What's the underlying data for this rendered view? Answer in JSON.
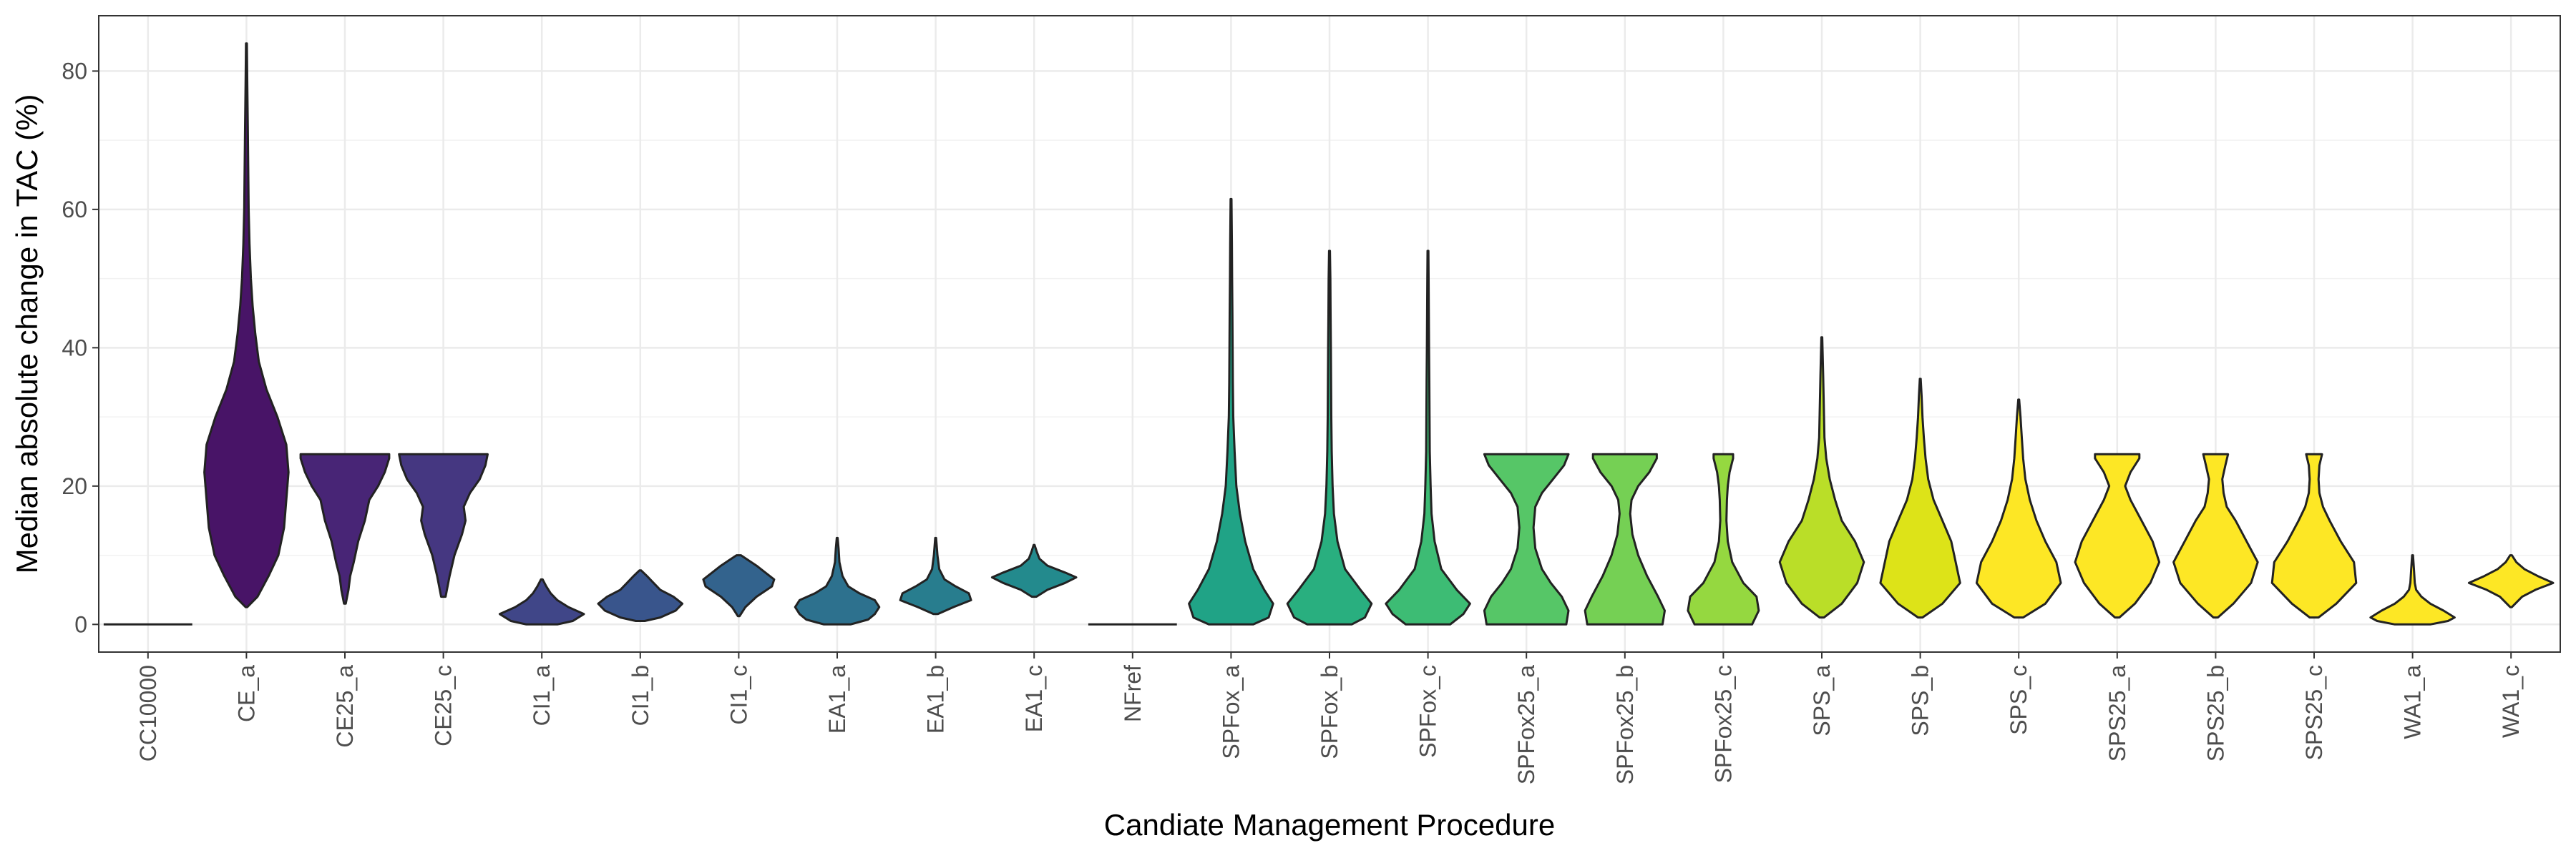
{
  "chart_data": {
    "type": "violin",
    "title": "",
    "xlabel": "Candiate Management Procedure",
    "ylabel": "Median absolute change in TAC (%)",
    "ylim": [
      -4,
      88
    ],
    "yticks": [
      0,
      20,
      40,
      60,
      80
    ],
    "grid": true,
    "legend": "none",
    "categories": [
      "CC10000",
      "CE_a",
      "CE25_a",
      "CE25_c",
      "CI1_a",
      "CI1_b",
      "CI1_c",
      "EA1_a",
      "EA1_b",
      "EA1_c",
      "NFref",
      "SPFox_a",
      "SPFox_b",
      "SPFox_c",
      "SPFox25_a",
      "SPFox25_b",
      "SPFox25_c",
      "SPS_a",
      "SPS_b",
      "SPS_c",
      "SPS25_a",
      "SPS25_b",
      "SPS25_c",
      "WA1_a",
      "WA1_c"
    ],
    "colors": [
      "#440154",
      "#481467",
      "#482576",
      "#453781",
      "#404688",
      "#39558c",
      "#33638d",
      "#2d718e",
      "#287d8e",
      "#238a8d",
      "#1f968b",
      "#20a386",
      "#29af7f",
      "#3dbc74",
      "#56c667",
      "#75d054",
      "#95d840",
      "#bade28",
      "#dde318",
      "#fde725",
      "#fde725",
      "#fde725",
      "#fde725",
      "#fde725",
      "#fde725"
    ],
    "violins": [
      {
        "min": 0,
        "max": 0,
        "shape": [
          [
            0,
            1
          ]
        ]
      },
      {
        "min": 2.5,
        "max": 84,
        "shape": [
          [
            2.5,
            0.02
          ],
          [
            4,
            0.25
          ],
          [
            7,
            0.5
          ],
          [
            10,
            0.72
          ],
          [
            14,
            0.85
          ],
          [
            18,
            0.9
          ],
          [
            22,
            0.95
          ],
          [
            26,
            0.9
          ],
          [
            30,
            0.7
          ],
          [
            34,
            0.45
          ],
          [
            38,
            0.28
          ],
          [
            42,
            0.2
          ],
          [
            46,
            0.14
          ],
          [
            50,
            0.1
          ],
          [
            55,
            0.07
          ],
          [
            60,
            0.05
          ],
          [
            66,
            0.04
          ],
          [
            72,
            0.03
          ],
          [
            78,
            0.02
          ],
          [
            84,
            0.01
          ]
        ]
      },
      {
        "min": 3,
        "max": 24.6,
        "shape": [
          [
            3,
            0.02
          ],
          [
            5,
            0.08
          ],
          [
            7,
            0.12
          ],
          [
            9,
            0.2
          ],
          [
            12,
            0.3
          ],
          [
            15,
            0.45
          ],
          [
            18,
            0.55
          ],
          [
            20,
            0.75
          ],
          [
            22,
            0.9
          ],
          [
            24,
            1.0
          ],
          [
            24.6,
            1.0
          ]
        ]
      },
      {
        "min": 4,
        "max": 24.6,
        "shape": [
          [
            4,
            0.05
          ],
          [
            7,
            0.14
          ],
          [
            10,
            0.25
          ],
          [
            13,
            0.42
          ],
          [
            15,
            0.5
          ],
          [
            17,
            0.46
          ],
          [
            19,
            0.6
          ],
          [
            21,
            0.82
          ],
          [
            23,
            0.95
          ],
          [
            24.6,
            1.0
          ]
        ]
      },
      {
        "min": 0,
        "max": 6.5,
        "shape": [
          [
            0,
            0.35
          ],
          [
            0.5,
            0.7
          ],
          [
            1.5,
            0.95
          ],
          [
            2.5,
            0.6
          ],
          [
            3.5,
            0.35
          ],
          [
            4.5,
            0.2
          ],
          [
            5.5,
            0.1
          ],
          [
            6.5,
            0.02
          ]
        ]
      },
      {
        "min": 0.5,
        "max": 7.8,
        "shape": [
          [
            0.5,
            0.1
          ],
          [
            1,
            0.45
          ],
          [
            2,
            0.8
          ],
          [
            3,
            0.95
          ],
          [
            4,
            0.75
          ],
          [
            5,
            0.45
          ],
          [
            6,
            0.3
          ],
          [
            7,
            0.15
          ],
          [
            7.8,
            0.02
          ]
        ]
      },
      {
        "min": 1.2,
        "max": 10,
        "shape": [
          [
            1.2,
            0.02
          ],
          [
            2.5,
            0.15
          ],
          [
            4,
            0.4
          ],
          [
            5.5,
            0.75
          ],
          [
            6.5,
            0.8
          ],
          [
            7.5,
            0.6
          ],
          [
            8.5,
            0.4
          ],
          [
            10,
            0.05
          ]
        ]
      },
      {
        "min": 0,
        "max": 12.5,
        "shape": [
          [
            0,
            0.3
          ],
          [
            0.7,
            0.7
          ],
          [
            1.5,
            0.85
          ],
          [
            2.5,
            0.95
          ],
          [
            3.5,
            0.85
          ],
          [
            4.5,
            0.5
          ],
          [
            5.5,
            0.25
          ],
          [
            7,
            0.12
          ],
          [
            9,
            0.05
          ],
          [
            11,
            0.03
          ],
          [
            12.5,
            0.01
          ]
        ]
      },
      {
        "min": 1.5,
        "max": 12.5,
        "shape": [
          [
            1.5,
            0.05
          ],
          [
            2.5,
            0.4
          ],
          [
            3.5,
            0.8
          ],
          [
            4.5,
            0.75
          ],
          [
            5.5,
            0.45
          ],
          [
            6.5,
            0.2
          ],
          [
            8,
            0.08
          ],
          [
            10,
            0.04
          ],
          [
            12.5,
            0.01
          ]
        ]
      },
      {
        "min": 4,
        "max": 11.5,
        "shape": [
          [
            4,
            0.05
          ],
          [
            5,
            0.3
          ],
          [
            6,
            0.7
          ],
          [
            6.8,
            0.95
          ],
          [
            7.5,
            0.7
          ],
          [
            8.5,
            0.3
          ],
          [
            9.5,
            0.12
          ],
          [
            10.5,
            0.06
          ],
          [
            11.5,
            0.01
          ]
        ]
      },
      {
        "min": 0,
        "max": 0,
        "shape": [
          [
            0,
            1
          ]
        ]
      },
      {
        "min": 0,
        "max": 61.5,
        "shape": [
          [
            0,
            0.5
          ],
          [
            1,
            0.85
          ],
          [
            3,
            0.95
          ],
          [
            5,
            0.75
          ],
          [
            8,
            0.5
          ],
          [
            12,
            0.32
          ],
          [
            16,
            0.2
          ],
          [
            20,
            0.12
          ],
          [
            25,
            0.08
          ],
          [
            30,
            0.05
          ],
          [
            35,
            0.04
          ],
          [
            40,
            0.035
          ],
          [
            45,
            0.03
          ],
          [
            50,
            0.025
          ],
          [
            55,
            0.02
          ],
          [
            61.5,
            0.01
          ]
        ]
      },
      {
        "min": 0,
        "max": 54,
        "shape": [
          [
            0,
            0.5
          ],
          [
            1,
            0.8
          ],
          [
            3,
            0.95
          ],
          [
            5,
            0.7
          ],
          [
            8,
            0.35
          ],
          [
            12,
            0.18
          ],
          [
            16,
            0.1
          ],
          [
            20,
            0.07
          ],
          [
            25,
            0.05
          ],
          [
            30,
            0.04
          ],
          [
            35,
            0.035
          ],
          [
            40,
            0.03
          ],
          [
            45,
            0.025
          ],
          [
            50,
            0.02
          ],
          [
            54,
            0.01
          ]
        ]
      },
      {
        "min": 0,
        "max": 54,
        "shape": [
          [
            0,
            0.5
          ],
          [
            1.5,
            0.8
          ],
          [
            3,
            0.95
          ],
          [
            5,
            0.65
          ],
          [
            8,
            0.3
          ],
          [
            12,
            0.15
          ],
          [
            16,
            0.08
          ],
          [
            20,
            0.06
          ],
          [
            25,
            0.04
          ],
          [
            30,
            0.035
          ],
          [
            35,
            0.03
          ],
          [
            40,
            0.025
          ],
          [
            45,
            0.02
          ],
          [
            50,
            0.015
          ],
          [
            54,
            0.01
          ]
        ]
      },
      {
        "min": 0,
        "max": 24.6,
        "shape": [
          [
            0,
            0.9
          ],
          [
            2,
            0.95
          ],
          [
            4,
            0.8
          ],
          [
            6,
            0.55
          ],
          [
            8,
            0.35
          ],
          [
            11,
            0.2
          ],
          [
            14,
            0.16
          ],
          [
            17,
            0.2
          ],
          [
            19,
            0.35
          ],
          [
            21,
            0.6
          ],
          [
            23,
            0.85
          ],
          [
            24.6,
            0.95
          ]
        ]
      },
      {
        "min": 0,
        "max": 24.6,
        "shape": [
          [
            0,
            0.85
          ],
          [
            2,
            0.9
          ],
          [
            4,
            0.75
          ],
          [
            7,
            0.5
          ],
          [
            10,
            0.3
          ],
          [
            13,
            0.17
          ],
          [
            16,
            0.12
          ],
          [
            18,
            0.15
          ],
          [
            20,
            0.3
          ],
          [
            22,
            0.55
          ],
          [
            24,
            0.72
          ],
          [
            24.6,
            0.72
          ]
        ]
      },
      {
        "min": 0,
        "max": 24.6,
        "shape": [
          [
            0,
            0.65
          ],
          [
            2,
            0.8
          ],
          [
            4,
            0.75
          ],
          [
            6,
            0.45
          ],
          [
            9,
            0.2
          ],
          [
            12,
            0.1
          ],
          [
            15,
            0.07
          ],
          [
            18,
            0.08
          ],
          [
            20,
            0.1
          ],
          [
            22,
            0.14
          ],
          [
            24,
            0.22
          ],
          [
            24.6,
            0.22
          ]
        ]
      },
      {
        "min": 1,
        "max": 41.5,
        "shape": [
          [
            1,
            0.05
          ],
          [
            3,
            0.45
          ],
          [
            6,
            0.8
          ],
          [
            9,
            0.95
          ],
          [
            12,
            0.75
          ],
          [
            15,
            0.45
          ],
          [
            18,
            0.3
          ],
          [
            21,
            0.18
          ],
          [
            24,
            0.1
          ],
          [
            27,
            0.06
          ],
          [
            30,
            0.05
          ],
          [
            33,
            0.04
          ],
          [
            36,
            0.03
          ],
          [
            39,
            0.02
          ],
          [
            41.5,
            0.01
          ]
        ]
      },
      {
        "min": 1,
        "max": 35.5,
        "shape": [
          [
            1,
            0.05
          ],
          [
            3,
            0.5
          ],
          [
            6,
            0.9
          ],
          [
            9,
            0.8
          ],
          [
            12,
            0.7
          ],
          [
            15,
            0.5
          ],
          [
            18,
            0.3
          ],
          [
            21,
            0.18
          ],
          [
            24,
            0.12
          ],
          [
            27,
            0.08
          ],
          [
            30,
            0.05
          ],
          [
            33,
            0.03
          ],
          [
            35.5,
            0.01
          ]
        ]
      },
      {
        "min": 1,
        "max": 32.5,
        "shape": [
          [
            1,
            0.1
          ],
          [
            3,
            0.6
          ],
          [
            6,
            0.95
          ],
          [
            9,
            0.85
          ],
          [
            12,
            0.6
          ],
          [
            15,
            0.4
          ],
          [
            18,
            0.25
          ],
          [
            21,
            0.15
          ],
          [
            24,
            0.1
          ],
          [
            27,
            0.07
          ],
          [
            30,
            0.04
          ],
          [
            32.5,
            0.01
          ]
        ]
      },
      {
        "min": 1,
        "max": 24.6,
        "shape": [
          [
            1,
            0.05
          ],
          [
            3,
            0.4
          ],
          [
            6,
            0.75
          ],
          [
            9,
            0.95
          ],
          [
            12,
            0.8
          ],
          [
            15,
            0.55
          ],
          [
            18,
            0.3
          ],
          [
            20,
            0.18
          ],
          [
            22,
            0.3
          ],
          [
            24,
            0.5
          ],
          [
            24.6,
            0.5
          ]
        ]
      },
      {
        "min": 1,
        "max": 24.6,
        "shape": [
          [
            1,
            0.05
          ],
          [
            3,
            0.4
          ],
          [
            6,
            0.8
          ],
          [
            9,
            0.95
          ],
          [
            12,
            0.7
          ],
          [
            15,
            0.45
          ],
          [
            17,
            0.25
          ],
          [
            19,
            0.18
          ],
          [
            21,
            0.15
          ],
          [
            23,
            0.22
          ],
          [
            24.6,
            0.28
          ]
        ]
      },
      {
        "min": 1,
        "max": 24.6,
        "shape": [
          [
            1,
            0.1
          ],
          [
            3,
            0.5
          ],
          [
            6,
            0.95
          ],
          [
            9,
            0.9
          ],
          [
            12,
            0.6
          ],
          [
            15,
            0.35
          ],
          [
            17,
            0.2
          ],
          [
            19,
            0.12
          ],
          [
            21,
            0.1
          ],
          [
            23,
            0.12
          ],
          [
            24.6,
            0.18
          ]
        ]
      },
      {
        "min": 0,
        "max": 10,
        "shape": [
          [
            0,
            0.4
          ],
          [
            0.5,
            0.8
          ],
          [
            1,
            0.95
          ],
          [
            2,
            0.7
          ],
          [
            3,
            0.4
          ],
          [
            4,
            0.2
          ],
          [
            5,
            0.08
          ],
          [
            6,
            0.05
          ],
          [
            8,
            0.03
          ],
          [
            10,
            0.01
          ]
        ]
      },
      {
        "min": 2.5,
        "max": 10,
        "shape": [
          [
            2.5,
            0.02
          ],
          [
            4,
            0.25
          ],
          [
            5,
            0.55
          ],
          [
            6,
            0.95
          ],
          [
            7,
            0.6
          ],
          [
            8,
            0.3
          ],
          [
            9,
            0.12
          ],
          [
            10,
            0.02
          ]
        ]
      }
    ]
  }
}
